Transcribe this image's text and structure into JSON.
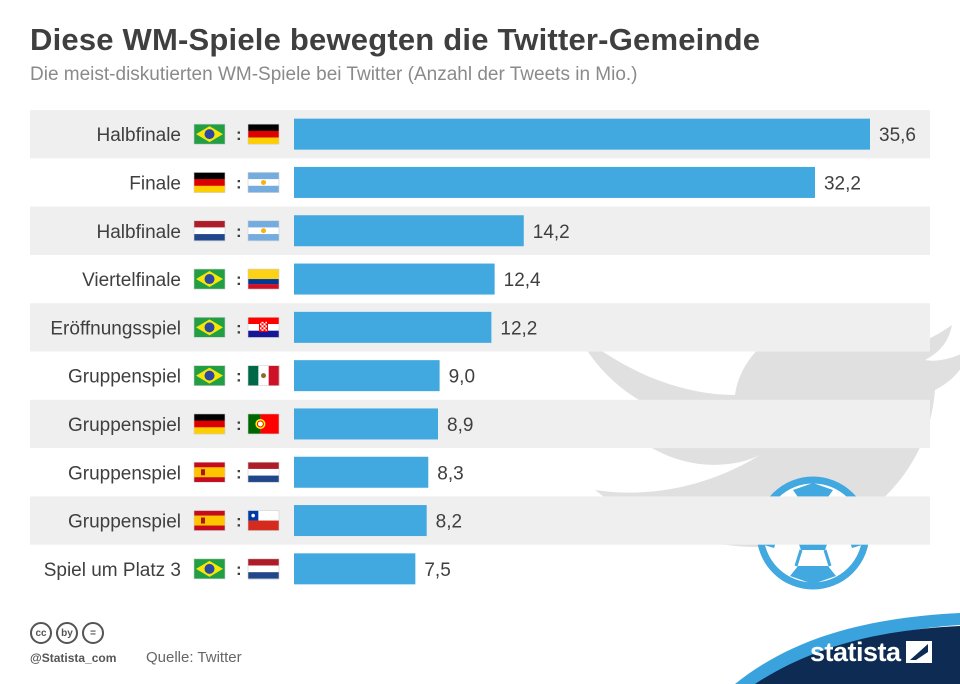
{
  "header": {
    "title": "Diese WM-Spiele bewegten die Twitter-Gemeinde",
    "subtitle": "Die meist-diskutierten WM-Spiele bei Twitter (Anzahl der Tweets in Mio.)"
  },
  "chart_data": {
    "type": "bar",
    "orientation": "horizontal",
    "categories": [
      "Halbfinale",
      "Finale",
      "Halbfinale",
      "Viertelfinale",
      "Eröffnungsspiel",
      "Gruppenspiel",
      "Gruppenspiel",
      "Gruppenspiel",
      "Gruppenspiel",
      "Spiel um Platz 3"
    ],
    "values": [
      35.6,
      32.2,
      14.2,
      12.4,
      12.2,
      9.0,
      8.9,
      8.3,
      8.2,
      7.5
    ],
    "value_labels": [
      "35,6",
      "32,2",
      "14,2",
      "12,4",
      "12,2",
      "9,0",
      "8,9",
      "8,3",
      "8,2",
      "7,5"
    ],
    "separator": ":",
    "matches": [
      [
        "brazil",
        "germany"
      ],
      [
        "germany",
        "argentina"
      ],
      [
        "netherlands",
        "argentina"
      ],
      [
        "brazil",
        "colombia"
      ],
      [
        "brazil",
        "croatia"
      ],
      [
        "brazil",
        "mexico"
      ],
      [
        "germany",
        "portugal"
      ],
      [
        "spain",
        "netherlands"
      ],
      [
        "spain",
        "chile"
      ],
      [
        "brazil",
        "netherlands"
      ]
    ],
    "xlim": [
      0,
      35.6
    ],
    "grid": false,
    "bar_color": "#41a8e0",
    "stripe_color": "#efefef"
  },
  "decorations": {
    "background_icons": [
      "twitter-bird-icon",
      "soccer-ball-icon"
    ]
  },
  "footer": {
    "license_icons": [
      "cc",
      "by",
      "="
    ],
    "handle": "@Statista_com",
    "source": "Quelle: Twitter",
    "brand": "statista"
  },
  "colors": {
    "title": "#3f3f3f",
    "subtitle": "#8a8a8a",
    "bar": "#41a8e0",
    "brand_wave": "#0d2b53",
    "brand_wave_light": "#3aa3de",
    "decor": "#e0e0e0"
  }
}
